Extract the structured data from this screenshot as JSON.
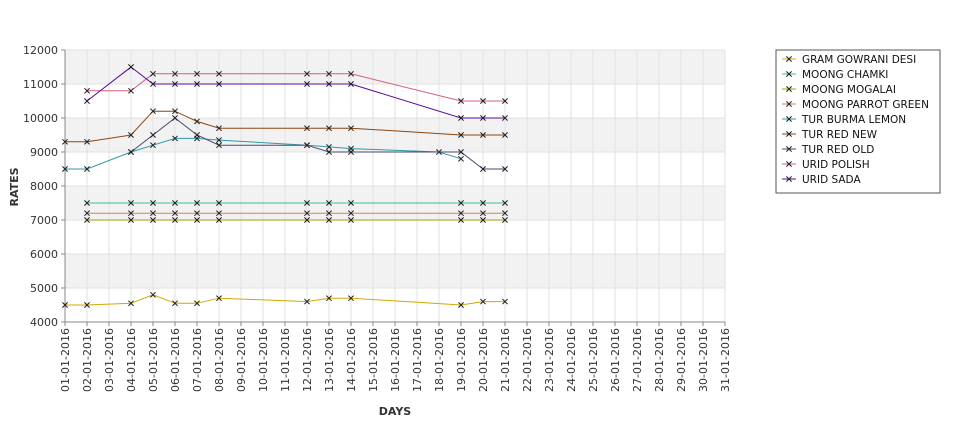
{
  "chart_data": {
    "type": "line",
    "title": "",
    "xlabel": "DAYS",
    "ylabel": "RATES",
    "ylim": [
      4000,
      12000
    ],
    "yticks": [
      4000,
      5000,
      6000,
      7000,
      8000,
      9000,
      10000,
      11000,
      12000
    ],
    "grid": true,
    "legend_position": "right",
    "categories": [
      "01-01-2016",
      "02-01-2016",
      "03-01-2016",
      "04-01-2016",
      "05-01-2016",
      "06-01-2016",
      "07-01-2016",
      "08-01-2016",
      "09-01-2016",
      "10-01-2016",
      "11-01-2016",
      "12-01-2016",
      "13-01-2016",
      "14-01-2016",
      "15-01-2016",
      "16-01-2016",
      "17-01-2016",
      "18-01-2016",
      "19-01-2016",
      "20-01-2016",
      "21-01-2016",
      "22-01-2016",
      "23-01-2016",
      "24-01-2016",
      "25-01-2016",
      "26-01-2016",
      "27-01-2016",
      "28-01-2016",
      "29-01-2016",
      "30-01-2016",
      "31-01-2016"
    ],
    "series": [
      {
        "name": "GRAM GOWRANI DESI",
        "color": "#d4a800",
        "points": [
          [
            1,
            4500
          ],
          [
            2,
            4500
          ],
          [
            4,
            4550
          ],
          [
            5,
            4800
          ],
          [
            6,
            4550
          ],
          [
            7,
            4550
          ],
          [
            8,
            4700
          ],
          [
            12,
            4600
          ],
          [
            13,
            4700
          ],
          [
            14,
            4700
          ],
          [
            19,
            4500
          ],
          [
            20,
            4600
          ],
          [
            21,
            4600
          ]
        ]
      },
      {
        "name": "MOONG CHAMKI",
        "color": "#3cc0a0",
        "points": [
          [
            2,
            7500
          ],
          [
            4,
            7500
          ],
          [
            5,
            7500
          ],
          [
            6,
            7500
          ],
          [
            7,
            7500
          ],
          [
            8,
            7500
          ],
          [
            12,
            7500
          ],
          [
            13,
            7500
          ],
          [
            14,
            7500
          ],
          [
            19,
            7500
          ],
          [
            20,
            7500
          ],
          [
            21,
            7500
          ]
        ]
      },
      {
        "name": "MOONG MOGALAI",
        "color": "#a0a000",
        "points": [
          [
            2,
            7000
          ],
          [
            4,
            7000
          ],
          [
            5,
            7000
          ],
          [
            6,
            7000
          ],
          [
            7,
            7000
          ],
          [
            8,
            7000
          ],
          [
            12,
            7000
          ],
          [
            13,
            7000
          ],
          [
            14,
            7000
          ],
          [
            19,
            7000
          ],
          [
            20,
            7000
          ],
          [
            21,
            7000
          ]
        ]
      },
      {
        "name": "MOONG PARROT GREEN",
        "color": "#d88050",
        "points": [
          [
            2,
            7200
          ],
          [
            4,
            7200
          ],
          [
            5,
            7200
          ],
          [
            6,
            7200
          ],
          [
            7,
            7200
          ],
          [
            8,
            7200
          ],
          [
            12,
            7200
          ],
          [
            13,
            7200
          ],
          [
            14,
            7200
          ],
          [
            19,
            7200
          ],
          [
            20,
            7200
          ],
          [
            21,
            7200
          ]
        ]
      },
      {
        "name": "TUR BURMA LEMON",
        "color": "#2f9aa8",
        "points": [
          [
            1,
            8500
          ],
          [
            2,
            8500
          ],
          [
            4,
            9000
          ],
          [
            5,
            9200
          ],
          [
            6,
            9400
          ],
          [
            7,
            9400
          ],
          [
            8,
            9350
          ],
          [
            12,
            9200
          ],
          [
            13,
            9150
          ],
          [
            14,
            9100
          ],
          [
            18,
            9000
          ],
          [
            19,
            8800
          ]
        ]
      },
      {
        "name": "TUR RED NEW",
        "color": "#8b4510",
        "points": [
          [
            1,
            9300
          ],
          [
            2,
            9300
          ],
          [
            4,
            9500
          ],
          [
            5,
            10200
          ],
          [
            6,
            10200
          ],
          [
            7,
            9900
          ],
          [
            8,
            9700
          ],
          [
            12,
            9700
          ],
          [
            13,
            9700
          ],
          [
            14,
            9700
          ],
          [
            19,
            9500
          ],
          [
            20,
            9500
          ],
          [
            21,
            9500
          ]
        ]
      },
      {
        "name": "TUR RED OLD",
        "color": "#4a4a70",
        "points": [
          [
            4,
            9000
          ],
          [
            5,
            9500
          ],
          [
            6,
            10000
          ],
          [
            7,
            9500
          ],
          [
            8,
            9200
          ],
          [
            12,
            9200
          ],
          [
            13,
            9000
          ],
          [
            14,
            9000
          ],
          [
            19,
            9000
          ],
          [
            20,
            8500
          ],
          [
            21,
            8500
          ]
        ]
      },
      {
        "name": "URID POLISH",
        "color": "#d06080",
        "points": [
          [
            2,
            10800
          ],
          [
            4,
            10800
          ],
          [
            5,
            11300
          ],
          [
            6,
            11300
          ],
          [
            7,
            11300
          ],
          [
            8,
            11300
          ],
          [
            12,
            11300
          ],
          [
            13,
            11300
          ],
          [
            14,
            11300
          ],
          [
            19,
            10500
          ],
          [
            20,
            10500
          ],
          [
            21,
            10500
          ]
        ]
      },
      {
        "name": "URID SADA",
        "color": "#5a0aa0",
        "points": [
          [
            2,
            10500
          ],
          [
            4,
            11500
          ],
          [
            5,
            11000
          ],
          [
            6,
            11000
          ],
          [
            7,
            11000
          ],
          [
            8,
            11000
          ],
          [
            12,
            11000
          ],
          [
            13,
            11000
          ],
          [
            14,
            11000
          ],
          [
            19,
            10000
          ],
          [
            20,
            10000
          ],
          [
            21,
            10000
          ]
        ]
      }
    ]
  }
}
